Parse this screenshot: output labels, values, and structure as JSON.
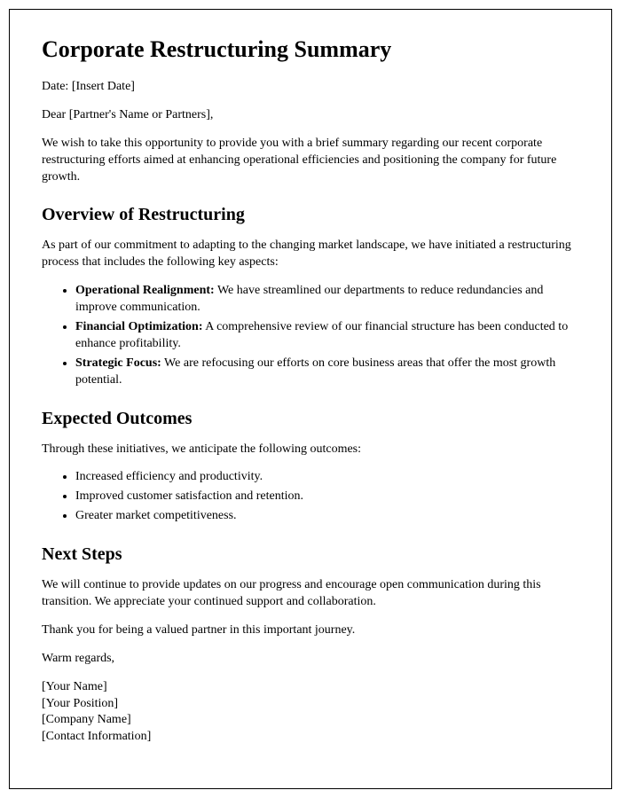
{
  "title": "Corporate Restructuring Summary",
  "date_line": "Date: [Insert Date]",
  "salutation": "Dear [Partner's Name or Partners],",
  "intro": "We wish to take this opportunity to provide you with a brief summary regarding our recent corporate restructuring efforts aimed at enhancing operational efficiencies and positioning the company for future growth.",
  "section1": {
    "heading": "Overview of Restructuring",
    "intro": "As part of our commitment to adapting to the changing market landscape, we have initiated a restructuring process that includes the following key aspects:",
    "items": [
      {
        "label": "Operational Realignment:",
        "text": " We have streamlined our departments to reduce redundancies and improve communication."
      },
      {
        "label": "Financial Optimization:",
        "text": " A comprehensive review of our financial structure has been conducted to enhance profitability."
      },
      {
        "label": "Strategic Focus:",
        "text": " We are refocusing our efforts on core business areas that offer the most growth potential."
      }
    ]
  },
  "section2": {
    "heading": "Expected Outcomes",
    "intro": "Through these initiatives, we anticipate the following outcomes:",
    "items": [
      "Increased efficiency and productivity.",
      "Improved customer satisfaction and retention.",
      "Greater market competitiveness."
    ]
  },
  "section3": {
    "heading": "Next Steps",
    "para1": "We will continue to provide updates on our progress and encourage open communication during this transition. We appreciate your continued support and collaboration.",
    "para2": "Thank you for being a valued partner in this important journey."
  },
  "closing": "Warm regards,",
  "signature": [
    "[Your Name]",
    "[Your Position]",
    "[Company Name]",
    "[Contact Information]"
  ]
}
